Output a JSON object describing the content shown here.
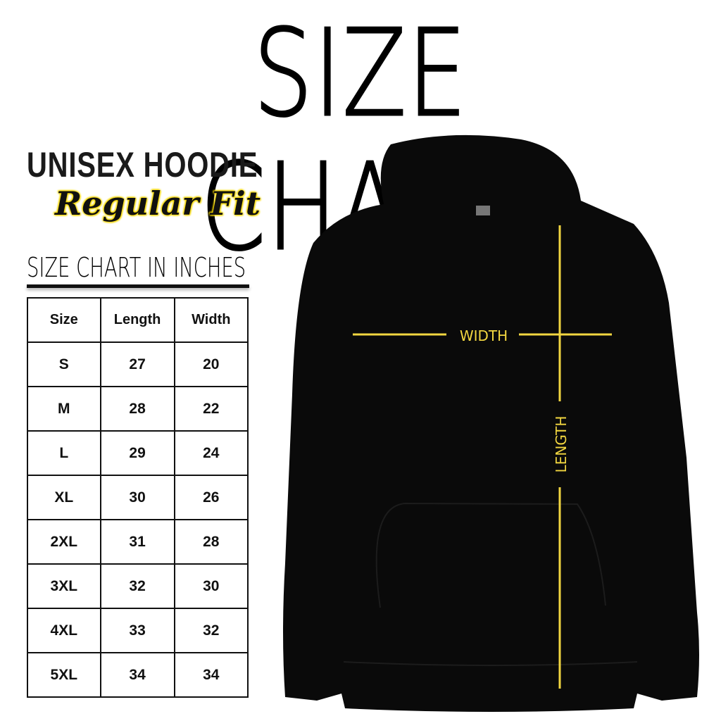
{
  "title": "SIZE CHART",
  "product": "UNISEX HOODIE",
  "fit": "Regular Fit",
  "units_heading": "SIZE CHART IN INCHES",
  "table": {
    "headers": [
      "Size",
      "Length",
      "Width"
    ],
    "rows": [
      [
        "S",
        "27",
        "20"
      ],
      [
        "M",
        "28",
        "22"
      ],
      [
        "L",
        "29",
        "24"
      ],
      [
        "XL",
        "30",
        "26"
      ],
      [
        "2XL",
        "31",
        "28"
      ],
      [
        "3XL",
        "32",
        "30"
      ],
      [
        "4XL",
        "33",
        "32"
      ],
      [
        "5XL",
        "34",
        "34"
      ]
    ]
  },
  "diagram": {
    "width_label": "WIDTH",
    "length_label": "LENGTH",
    "garment_color": "#0a0a0a",
    "measure_color": "#f2d640"
  }
}
